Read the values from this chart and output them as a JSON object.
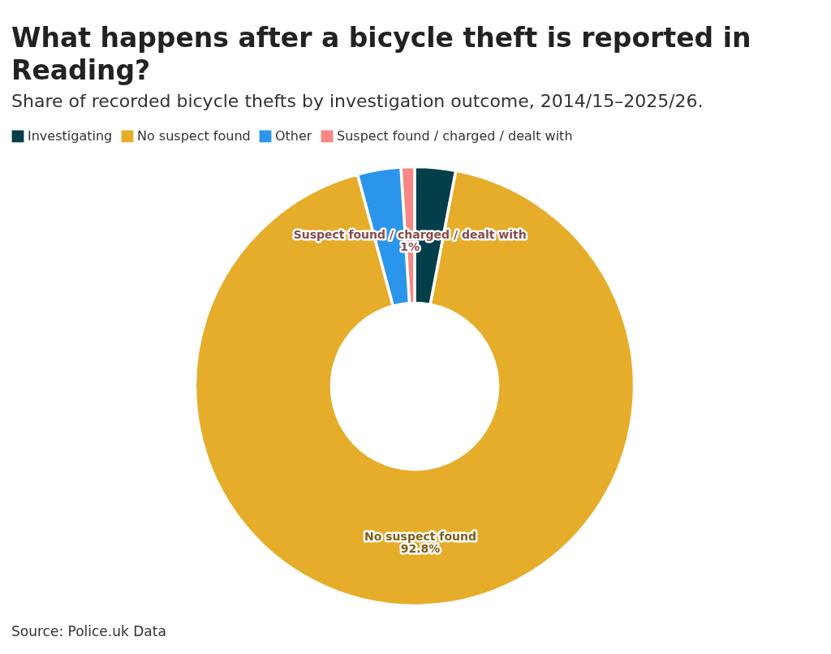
{
  "chart_data": {
    "type": "donut",
    "title": "What happens after a bicycle theft is reported in Reading?",
    "subtitle": "Share of recorded bicycle thefts by investigation outcome, 2014/15–2025/26.",
    "categories": [
      "Investigating",
      "No suspect found",
      "Other",
      "Suspect found / charged / dealt with"
    ],
    "values": [
      3.0,
      92.8,
      3.2,
      1.0
    ],
    "colors": [
      "#033f4a",
      "#e6ad2b",
      "#2b95ec",
      "#f78784"
    ],
    "value_labels": [
      null,
      "92.8%",
      null,
      "1%"
    ],
    "legend": "top left",
    "annotations": [
      "Source: Police.uk Data"
    ]
  }
}
